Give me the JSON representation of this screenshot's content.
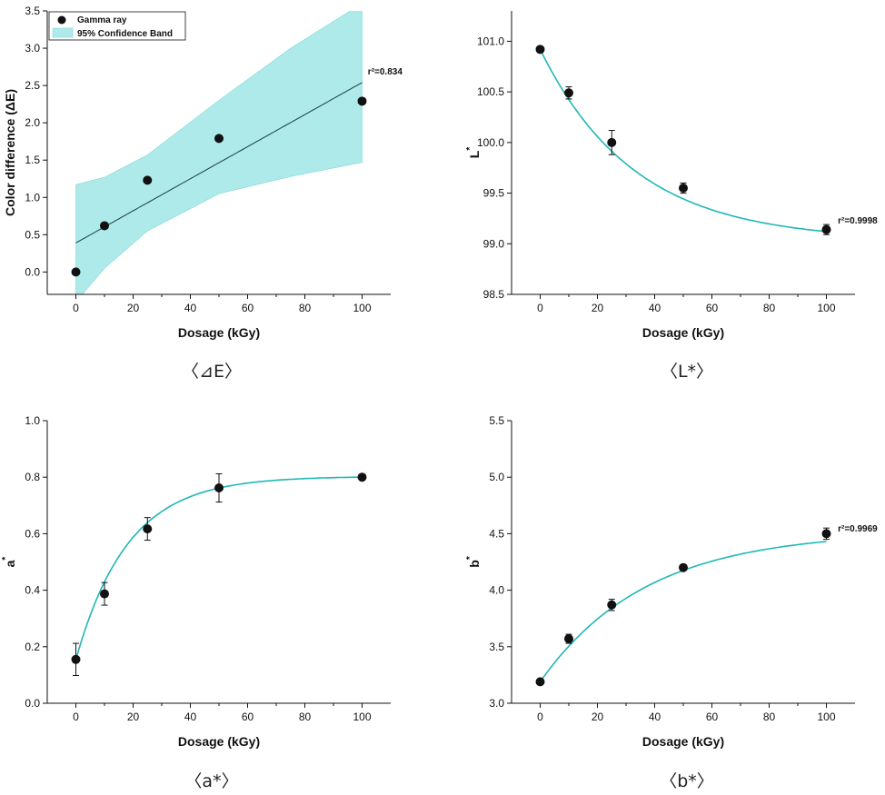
{
  "colors": {
    "fit": "#1fb7b7",
    "band": "#aeeaea",
    "band_edge": "#7fd9d9",
    "point": "#111111",
    "line_dark": "#1a3d3d"
  },
  "chart_data": [
    {
      "id": "dE",
      "type": "scatter",
      "caption": "〈⊿E〉",
      "xlabel": "Dosage (kGy)",
      "ylabel": "Color difference (ΔE)",
      "xlim": [
        -10,
        110
      ],
      "ylim": [
        -0.3,
        3.5
      ],
      "xticks": [
        "0",
        "20",
        "40",
        "60",
        "80",
        "100"
      ],
      "yticks": [
        "0.0",
        "0.5",
        "1.0",
        "1.5",
        "2.0",
        "2.5",
        "3.0",
        "3.5"
      ],
      "x": [
        0,
        10,
        25,
        50,
        100
      ],
      "y": [
        0.0,
        0.62,
        1.23,
        1.79,
        2.29
      ],
      "fit": {
        "kind": "linear",
        "intercept": 0.39,
        "slope": 0.0215
      },
      "band": {
        "x": [
          0,
          10,
          25,
          50,
          75,
          100
        ],
        "lower": [
          -0.4,
          0.05,
          0.55,
          1.05,
          1.28,
          1.47
        ],
        "upper": [
          1.17,
          1.27,
          1.57,
          2.3,
          3.0,
          3.6
        ]
      },
      "legend": {
        "position": "top-left",
        "entries": [
          "Gamma ray",
          "95% Confidence Band"
        ]
      },
      "annotation": {
        "text": "r²=0.834",
        "at": [
          102,
          2.65
        ]
      }
    },
    {
      "id": "L",
      "type": "scatter",
      "caption": "〈L*〉",
      "xlabel": "Dosage (kGy)",
      "ylabel": "L",
      "ylabel_sup": "*",
      "xlim": [
        -10,
        110
      ],
      "ylim": [
        98.5,
        101.3
      ],
      "xticks": [
        "0",
        "20",
        "40",
        "60",
        "80",
        "100"
      ],
      "yticks": [
        "98.5",
        "99.0",
        "99.5",
        "100.0",
        "100.5",
        "101.0"
      ],
      "x": [
        0,
        10,
        25,
        50,
        100
      ],
      "y": [
        100.92,
        100.49,
        100.0,
        99.55,
        99.14
      ],
      "err": [
        0.03,
        0.06,
        0.12,
        0.05,
        0.05
      ],
      "fit": {
        "kind": "exp",
        "a": 99.03,
        "b": 1.89,
        "k": 0.0304
      },
      "annotation": {
        "text": "r²=0.9998",
        "at": [
          104,
          99.2
        ]
      }
    },
    {
      "id": "a",
      "type": "scatter",
      "caption": "〈a*〉",
      "xlabel": "Dosage (kGy)",
      "ylabel": "a",
      "ylabel_sup": "*",
      "xlim": [
        -10,
        110
      ],
      "ylim": [
        0.0,
        1.0
      ],
      "xticks": [
        "0",
        "20",
        "40",
        "60",
        "80",
        "100"
      ],
      "yticks": [
        "0.0",
        "0.2",
        "0.4",
        "0.6",
        "0.8",
        "1.0"
      ],
      "x": [
        0,
        10,
        25,
        50,
        100
      ],
      "y": [
        0.155,
        0.387,
        0.617,
        0.762,
        0.8
      ],
      "err": [
        0.057,
        0.04,
        0.04,
        0.05,
        0.01
      ],
      "fit": {
        "kind": "exp",
        "a": 0.803,
        "b": -0.648,
        "k": 0.055
      }
    },
    {
      "id": "b",
      "type": "scatter",
      "caption": "〈b*〉",
      "xlabel": "Dosage (kGy)",
      "ylabel": "b",
      "ylabel_sup": "*",
      "xlim": [
        -10,
        110
      ],
      "ylim": [
        3.0,
        5.5
      ],
      "xticks": [
        "0",
        "20",
        "40",
        "60",
        "80",
        "100"
      ],
      "yticks": [
        "3.0",
        "3.5",
        "4.0",
        "4.5",
        "5.0",
        "5.5"
      ],
      "x": [
        0,
        10,
        25,
        50,
        100
      ],
      "y": [
        3.19,
        3.57,
        3.87,
        4.2,
        4.5
      ],
      "err": [
        0.02,
        0.04,
        0.05,
        0.02,
        0.05
      ],
      "fit": {
        "kind": "exp",
        "a": 4.52,
        "b": -1.33,
        "k": 0.027
      },
      "annotation": {
        "text": "r²=0.9969",
        "at": [
          104,
          4.52
        ]
      }
    }
  ]
}
